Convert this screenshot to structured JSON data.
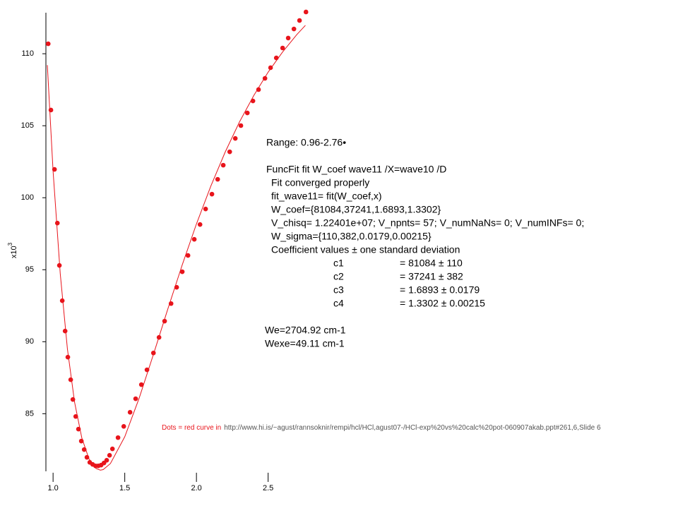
{
  "chart_data": {
    "type": "scatter",
    "xlim": [
      0.95,
      2.8
    ],
    "ylim": [
      81,
      112.85
    ],
    "xticks": [
      {
        "value": 1,
        "label": "1.0"
      },
      {
        "value": 1.5,
        "label": "1.5"
      },
      {
        "value": 2,
        "label": "2.0"
      },
      {
        "value": 2.5,
        "label": "2.5"
      }
    ],
    "yticks": [
      85,
      90,
      95,
      100,
      105,
      110
    ],
    "y_label": {
      "base": "x10",
      "exponent": "3"
    },
    "grid": false,
    "series": [
      {
        "style": "dots",
        "color": "#e8141b",
        "x": [
          0.966,
          0.985,
          1.01,
          1.03,
          1.044,
          1.064,
          1.084,
          1.103,
          1.123,
          1.138,
          1.158,
          1.177,
          1.197,
          1.217,
          1.236,
          1.256,
          1.276,
          1.296,
          1.315,
          1.335,
          1.355,
          1.374,
          1.394,
          1.414,
          1.453,
          1.493,
          1.537,
          1.576,
          1.616,
          1.655,
          1.7,
          1.739,
          1.778,
          1.823,
          1.862,
          1.901,
          1.941,
          1.985,
          2.025,
          2.064,
          2.108,
          2.148,
          2.187,
          2.232,
          2.271,
          2.31,
          2.355,
          2.394,
          2.433,
          2.478,
          2.517,
          2.557,
          2.601,
          2.64,
          2.68,
          2.719,
          2.764
        ],
        "values": [
          110.69,
          106.09,
          101.97,
          98.24,
          95.3,
          92.85,
          90.74,
          88.93,
          87.36,
          85.99,
          84.81,
          83.93,
          83.1,
          82.51,
          81.97,
          81.62,
          81.48,
          81.38,
          81.38,
          81.43,
          81.58,
          81.77,
          82.11,
          82.56,
          83.34,
          84.12,
          85.1,
          86.04,
          87.02,
          88.05,
          89.22,
          90.3,
          91.43,
          92.65,
          93.78,
          94.86,
          95.99,
          97.11,
          98.14,
          99.22,
          100.25,
          101.28,
          102.26,
          103.19,
          104.12,
          105.01,
          105.89,
          106.72,
          107.51,
          108.29,
          109.03,
          109.71,
          110.4,
          111.09,
          111.72,
          112.31,
          112.9
        ]
      },
      {
        "style": "line",
        "color": "#e8141b",
        "x": [
          0.96,
          1.0,
          1.05,
          1.1,
          1.15,
          1.2,
          1.25,
          1.3,
          1.3302,
          1.35,
          1.4,
          1.5,
          1.6,
          1.7,
          1.8,
          1.9,
          2.0,
          2.1,
          2.2,
          2.3,
          2.4,
          2.5,
          2.6,
          2.7,
          2.76
        ],
        "values": [
          109.21,
          101.85,
          94.73,
          89.5,
          85.8,
          83.34,
          81.87,
          81.19,
          81.08,
          81.12,
          81.54,
          83.4,
          86.07,
          89.12,
          92.26,
          95.31,
          98.18,
          100.8,
          103.16,
          105.26,
          107.1,
          108.72,
          110.11,
          111.33,
          111.97
        ]
      }
    ],
    "annotation": {
      "range": "Range: 0.96-2.76•",
      "command": "FuncFit fit W_coef wave11 /X=wave10 /D",
      "lines": [
        "Fit converged properly",
        "fit_wave11= fit(W_coef,x)",
        "W_coef={81084,37241,1.6893,1.3302}",
        "V_chisq= 1.22401e+07; V_npnts= 57; V_numNaNs= 0; V_numINFs= 0;",
        "W_sigma={110,382,0.0179,0.00215}",
        "Coefficient values ± one standard deviation"
      ],
      "coefficients": [
        [
          "c1",
          "= 81084 ± 110"
        ],
        [
          "c2",
          "= 37241 ± 382"
        ],
        [
          "c3",
          "= 1.6893 ± 0.0179"
        ],
        [
          "c4",
          "= 1.3302 ± 0.00215"
        ]
      ],
      "results": [
        "We=2704.92 cm-1",
        "Wexe=49.11 cm-1"
      ]
    },
    "note": {
      "text": "Dots = red curve in",
      "link": "http://www.hi.is/~agust/rannsoknir/rempi/hcl/HCl,agust07-/HCl-exp%20vs%20calc%20pot-060907akab.ppt#261,6,Slide 6"
    }
  }
}
